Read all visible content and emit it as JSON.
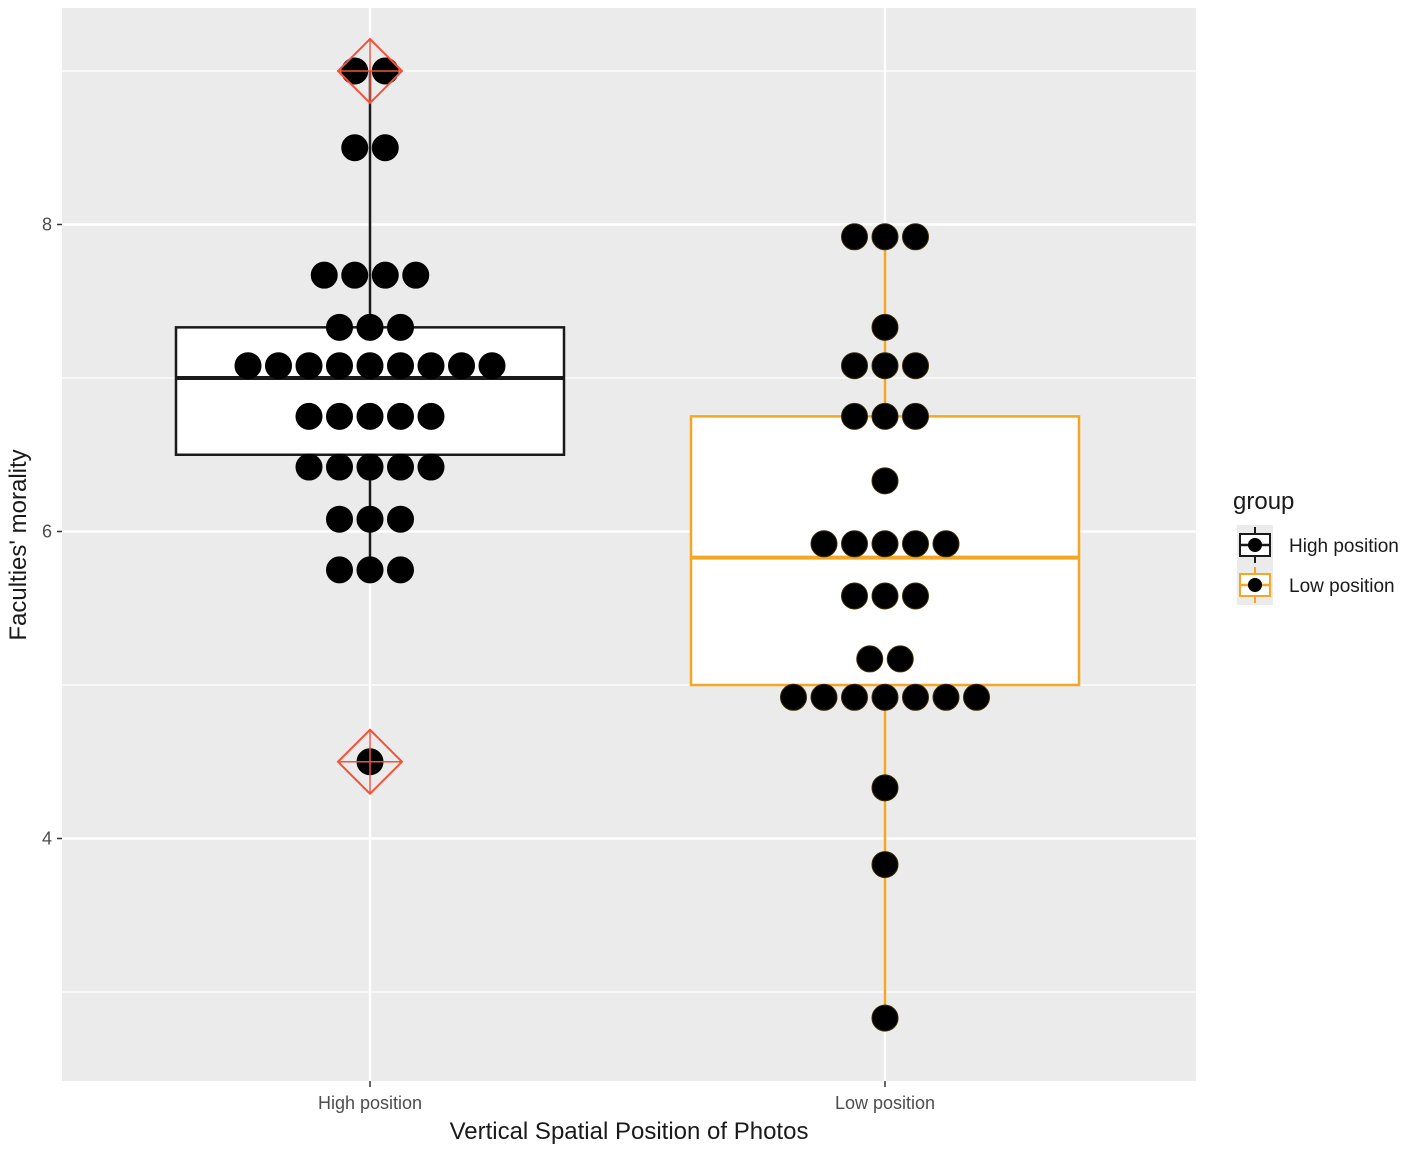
{
  "chart_data": {
    "type": "boxplot",
    "xlabel": "Vertical Spatial Position of Photos",
    "ylabel": "Faculties' morality",
    "categories": [
      "High position",
      "Low position"
    ],
    "y_ticks": [
      4,
      6,
      8
    ],
    "ylim": [
      2.6,
      9.5
    ],
    "grid": true,
    "legend": {
      "title": "group",
      "position": "right",
      "entries": [
        "High position",
        "Low position"
      ]
    },
    "colors": {
      "panel_background": "#ebebeb",
      "grid": "#ffffff",
      "High position": "#1a1a1a",
      "Low position": "#f5a623",
      "outlier_marker": "#f2523a",
      "dot": "#000000"
    },
    "series": [
      {
        "name": "High position",
        "box": {
          "lower_whisker": 5.75,
          "q1": 6.5,
          "median": 7.0,
          "q3": 7.33,
          "upper_whisker": 9.0
        },
        "outliers": [
          4.5,
          9.0
        ],
        "dots": [
          {
            "y": 9.0,
            "count": 2
          },
          {
            "y": 8.5,
            "count": 2
          },
          {
            "y": 7.67,
            "count": 4
          },
          {
            "y": 7.33,
            "count": 3
          },
          {
            "y": 7.08,
            "count": 9
          },
          {
            "y": 6.75,
            "count": 5
          },
          {
            "y": 6.42,
            "count": 5
          },
          {
            "y": 6.08,
            "count": 3
          },
          {
            "y": 5.75,
            "count": 3
          },
          {
            "y": 4.5,
            "count": 1
          }
        ]
      },
      {
        "name": "Low position",
        "box": {
          "lower_whisker": 2.83,
          "q1": 5.0,
          "median": 5.83,
          "q3": 6.75,
          "upper_whisker": 7.92
        },
        "outliers": [],
        "dots": [
          {
            "y": 7.92,
            "count": 3
          },
          {
            "y": 7.33,
            "count": 1
          },
          {
            "y": 7.08,
            "count": 3
          },
          {
            "y": 6.75,
            "count": 3
          },
          {
            "y": 6.33,
            "count": 1
          },
          {
            "y": 5.92,
            "count": 5
          },
          {
            "y": 5.58,
            "count": 3
          },
          {
            "y": 5.17,
            "count": 2
          },
          {
            "y": 4.92,
            "count": 7
          },
          {
            "y": 4.33,
            "count": 1
          },
          {
            "y": 3.83,
            "count": 1
          },
          {
            "y": 2.83,
            "count": 1
          }
        ]
      }
    ]
  }
}
